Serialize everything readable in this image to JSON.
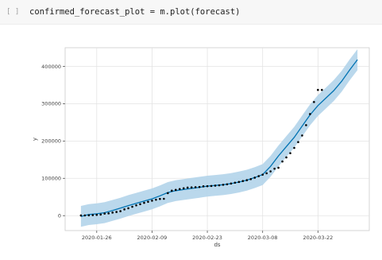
{
  "cell": {
    "prompt": "[ ]",
    "code": "confirmed_forecast_plot = m.plot(forecast)"
  },
  "chart_data": {
    "type": "line",
    "title": "",
    "xlabel": "ds",
    "ylabel": "y",
    "x_tick_labels": [
      "2020-01-26",
      "2020-02-09",
      "2020-02-23",
      "2020-03-08",
      "2020-03-22"
    ],
    "y_tick_labels": [
      "0",
      "100000",
      "200000",
      "300000",
      "400000"
    ],
    "y_ticks": [
      0,
      100000,
      200000,
      300000,
      400000
    ],
    "ylim": [
      -40000,
      450000
    ],
    "xlim": [
      "2020-01-18",
      "2020-04-04"
    ],
    "grid": true,
    "colors": {
      "forecast_line": "#0072b2",
      "uncertainty_band": "#b3d4ea",
      "observed_points": "#000000"
    },
    "series": [
      {
        "kind": "forecast",
        "x": [
          "2020-01-22",
          "2020-01-24",
          "2020-01-26",
          "2020-01-28",
          "2020-01-30",
          "2020-02-01",
          "2020-02-03",
          "2020-02-05",
          "2020-02-07",
          "2020-02-09",
          "2020-02-11",
          "2020-02-13",
          "2020-02-15",
          "2020-02-17",
          "2020-02-19",
          "2020-02-21",
          "2020-02-23",
          "2020-02-25",
          "2020-02-27",
          "2020-02-29",
          "2020-03-02",
          "2020-03-04",
          "2020-03-06",
          "2020-03-08",
          "2020-03-10",
          "2020-03-12",
          "2020-03-14",
          "2020-03-16",
          "2020-03-18",
          "2020-03-20",
          "2020-03-22",
          "2020-03-24",
          "2020-03-26",
          "2020-03-28",
          "2020-03-30",
          "2020-04-01"
        ],
        "yhat": [
          -2000,
          3000,
          5000,
          8000,
          14000,
          20000,
          27000,
          33000,
          39000,
          45000,
          53000,
          62000,
          67000,
          70000,
          73000,
          76000,
          79000,
          81000,
          83000,
          86000,
          90000,
          95000,
          102000,
          110000,
          132000,
          160000,
          185000,
          210000,
          240000,
          270000,
          295000,
          315000,
          335000,
          360000,
          390000,
          418000
        ],
        "band": 28000
      },
      {
        "kind": "observed",
        "x": [
          "2020-01-22",
          "2020-01-23",
          "2020-01-24",
          "2020-01-25",
          "2020-01-26",
          "2020-01-27",
          "2020-01-28",
          "2020-01-29",
          "2020-01-30",
          "2020-01-31",
          "2020-02-01",
          "2020-02-02",
          "2020-02-03",
          "2020-02-04",
          "2020-02-05",
          "2020-02-06",
          "2020-02-07",
          "2020-02-08",
          "2020-02-09",
          "2020-02-10",
          "2020-02-11",
          "2020-02-12",
          "2020-02-13",
          "2020-02-14",
          "2020-02-15",
          "2020-02-16",
          "2020-02-17",
          "2020-02-18",
          "2020-02-19",
          "2020-02-20",
          "2020-02-21",
          "2020-02-22",
          "2020-02-23",
          "2020-02-24",
          "2020-02-25",
          "2020-02-26",
          "2020-02-27",
          "2020-02-28",
          "2020-02-29",
          "2020-03-01",
          "2020-03-02",
          "2020-03-03",
          "2020-03-04",
          "2020-03-05",
          "2020-03-06",
          "2020-03-07",
          "2020-03-08",
          "2020-03-09",
          "2020-03-10",
          "2020-03-11",
          "2020-03-12",
          "2020-03-13",
          "2020-03-14",
          "2020-03-15",
          "2020-03-16",
          "2020-03-17",
          "2020-03-18",
          "2020-03-19",
          "2020-03-20",
          "2020-03-21",
          "2020-03-22",
          "2020-03-23"
        ],
        "y": [
          555,
          654,
          941,
          1434,
          2118,
          2927,
          5578,
          6166,
          8234,
          9927,
          12038,
          16787,
          19881,
          23892,
          27635,
          30794,
          34391,
          37120,
          40150,
          42762,
          44802,
          45221,
          60368,
          66885,
          69030,
          71224,
          73258,
          75136,
          75639,
          76197,
          76819,
          78572,
          78958,
          79561,
          80406,
          81388,
          82746,
          84112,
          86011,
          88369,
          90306,
          92840,
          95120,
          97886,
          101801,
          105847,
          109821,
          113590,
          118620,
          125875,
          128352,
          145205,
          156101,
          167454,
          181574,
          197102,
          214821,
          242570,
          272208,
          304507,
          336953,
          336953
        ]
      }
    ]
  }
}
